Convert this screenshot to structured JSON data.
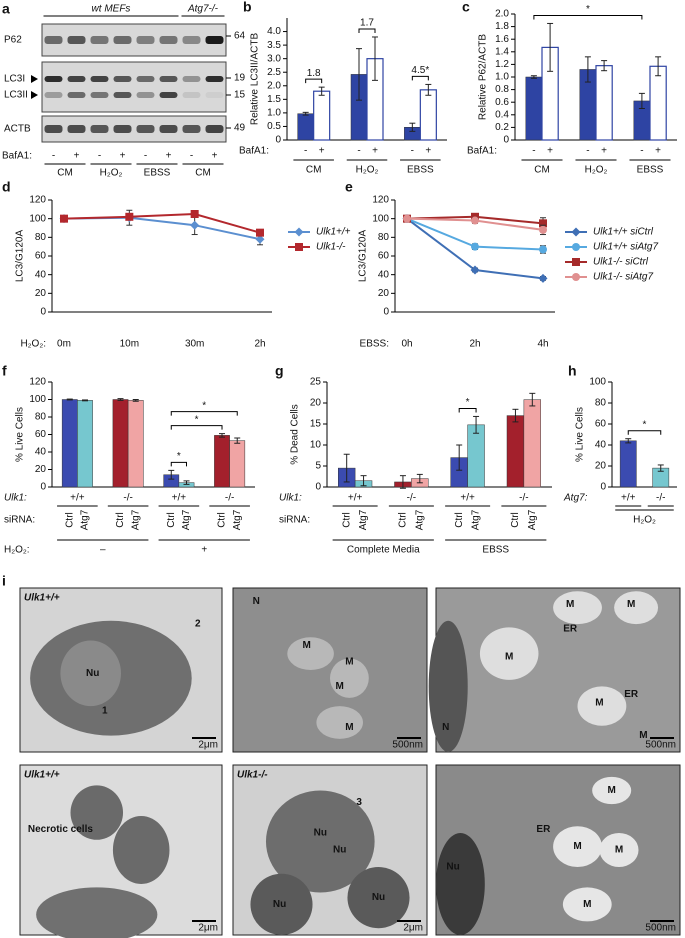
{
  "blot": {
    "panel": "a",
    "groups": [
      "wt MEFs",
      "Atg7-/-"
    ],
    "proteins": [
      "P62",
      "LC3I",
      "LC3II",
      "ACTB"
    ],
    "markers": [
      "64",
      "19",
      "15",
      "49"
    ],
    "treatment_title": "BafA1:",
    "lanes": [
      "-",
      "+",
      "-",
      "+",
      "-",
      "+",
      "-",
      "+"
    ],
    "conditions": [
      "CM",
      "H₂O₂",
      "EBSS",
      "CM"
    ]
  },
  "chart_data": [
    {
      "panel": "b",
      "type": "bar",
      "ylabel": "Relative LC3II/ACTB",
      "categories": [
        "CM",
        "H₂O₂",
        "EBSS"
      ],
      "series_title": "BafA1:",
      "series": [
        {
          "name": "-",
          "color": "#2e44a3",
          "values": [
            0.97,
            2.42,
            0.47
          ],
          "errors": [
            0.05,
            0.95,
            0.15
          ]
        },
        {
          "name": "+",
          "color": "#ffffff",
          "edgecolor": "#2e44a3",
          "values": [
            1.8,
            3.0,
            1.85
          ],
          "errors": [
            0.15,
            0.8,
            0.2
          ]
        }
      ],
      "ylim": [
        0,
        4.5
      ],
      "yticks": [
        0,
        0.5,
        {
          "value": 1,
          "label": "1.0"
        },
        1.5,
        {
          "value": 2,
          "label": "2.0"
        },
        2.5,
        {
          "value": 3,
          "label": "3.0"
        },
        3.5,
        {
          "value": 4,
          "label": "4.0"
        }
      ],
      "annotations": [
        {
          "text": "1.8",
          "from": [
            0,
            0
          ],
          "to": [
            0,
            1
          ]
        },
        {
          "text": "1.7",
          "from": [
            1,
            0
          ],
          "to": [
            1,
            1
          ]
        },
        {
          "text": "4.5*",
          "from": [
            2,
            0
          ],
          "to": [
            2,
            1
          ]
        }
      ]
    },
    {
      "panel": "c",
      "type": "bar",
      "ylabel": "Relative P62/ACTB",
      "categories": [
        "CM",
        "H₂O₂",
        "EBSS"
      ],
      "series_title": "BafA1:",
      "series": [
        {
          "name": "-",
          "color": "#2e44a3",
          "values": [
            1.0,
            1.12,
            0.62
          ],
          "errors": [
            0.02,
            0.2,
            0.12
          ]
        },
        {
          "name": "+",
          "color": "#ffffff",
          "edgecolor": "#2e44a3",
          "values": [
            1.47,
            1.18,
            1.17
          ],
          "errors": [
            0.38,
            0.08,
            0.15
          ]
        }
      ],
      "ylim": [
        0,
        2
      ],
      "yticks": [
        0,
        0.2,
        0.4,
        0.6,
        0.8,
        {
          "value": 1,
          "label": "1.0"
        },
        1.2,
        1.4,
        1.6,
        1.8,
        {
          "value": 2,
          "label": "2.0"
        }
      ],
      "annotations": [
        {
          "text": "*",
          "from": [
            0,
            0
          ],
          "to": [
            2,
            0
          ]
        }
      ]
    },
    {
      "panel": "d",
      "type": "line",
      "ylabel": "LC3/G120A",
      "xlabel": "H₂O₂:",
      "categories": [
        "0m",
        "10m",
        "30m",
        "2h"
      ],
      "series": [
        {
          "name": "Ulk1+/+",
          "color": "#5b8fd0",
          "marker": "diamond",
          "values": [
            100,
            101,
            93,
            78
          ],
          "errors": [
            0,
            8,
            10,
            6
          ]
        },
        {
          "name": "Ulk1-/-",
          "color": "#b3282d",
          "marker": "square",
          "values": [
            100,
            102,
            105,
            85
          ],
          "errors": [
            0,
            3,
            2,
            3
          ]
        }
      ],
      "ylim": [
        0,
        120
      ],
      "yticks": [
        0,
        20,
        40,
        60,
        80,
        100,
        120
      ]
    },
    {
      "panel": "e",
      "type": "line",
      "ylabel": "LC3/G120A",
      "xlabel": "EBSS:",
      "categories": [
        "0h",
        "2h",
        "4h"
      ],
      "series": [
        {
          "name": "Ulk1+/+ siCtrl",
          "color": "#3f6fb5",
          "marker": "diamond",
          "values": [
            100,
            45,
            36
          ],
          "errors": [
            0,
            2,
            2
          ]
        },
        {
          "name": "Ulk1+/+ siAtg7",
          "color": "#56a9e0",
          "marker": "circle",
          "values": [
            100,
            70,
            67
          ],
          "errors": [
            0,
            3,
            4
          ]
        },
        {
          "name": "Ulk1-/- siCtrl",
          "color": "#a52a2a",
          "marker": "square",
          "values": [
            100,
            102,
            95
          ],
          "errors": [
            0,
            3,
            6
          ]
        },
        {
          "name": "Ulk1-/- siAtg7",
          "color": "#e09090",
          "marker": "circle",
          "values": [
            100,
            98,
            88
          ],
          "errors": [
            0,
            3,
            5
          ]
        }
      ],
      "ylim": [
        0,
        120
      ],
      "yticks": [
        0,
        20,
        40,
        60,
        80,
        100,
        120
      ]
    },
    {
      "panel": "f",
      "type": "bar",
      "ylabel": "% Live Cells",
      "category_title": "Ulk1:",
      "categories": [
        "+/+",
        "-/-",
        "+/+",
        "-/-"
      ],
      "series_title": "siRNA:",
      "series": [
        {
          "name": "Ctrl",
          "colors": [
            "#3b4bb0",
            "#a3202c",
            "#3b4bb0",
            "#a3202c"
          ],
          "values": [
            100,
            100,
            14,
            59
          ],
          "errors": [
            0.5,
            1,
            5,
            2
          ]
        },
        {
          "name": "Atg7",
          "colors": [
            "#76c7cf",
            "#f0a4a4",
            "#76c7cf",
            "#f0a4a4"
          ],
          "values": [
            99,
            99,
            5,
            53
          ],
          "errors": [
            0.5,
            1,
            2,
            3
          ]
        }
      ],
      "treatment_title": "H₂O₂:",
      "treatment": [
        "–",
        "–",
        "+",
        "+"
      ],
      "ylim": [
        0,
        120
      ],
      "yticks": [
        0,
        20,
        40,
        60,
        80,
        100,
        120
      ],
      "annotations": [
        {
          "text": "*",
          "from": [
            2,
            0
          ],
          "to": [
            2,
            1
          ]
        },
        {
          "text": "*",
          "from": [
            2,
            0
          ],
          "to": [
            3,
            0
          ]
        },
        {
          "text": "*",
          "from": [
            2,
            0
          ],
          "to": [
            3,
            1
          ]
        }
      ]
    },
    {
      "panel": "g",
      "type": "bar",
      "ylabel": "% Dead Cells",
      "category_title": "Ulk1:",
      "categories": [
        "+/+",
        "-/-",
        "+/+",
        "-/-"
      ],
      "series_title": "siRNA:",
      "series": [
        {
          "name": "Ctrl",
          "colors": [
            "#3b4bb0",
            "#a3202c",
            "#3b4bb0",
            "#a3202c"
          ],
          "values": [
            4.5,
            1.2,
            7,
            17
          ],
          "errors": [
            3.3,
            1.5,
            3,
            1.5
          ]
        },
        {
          "name": "Atg7",
          "colors": [
            "#76c7cf",
            "#f0a4a4",
            "#76c7cf",
            "#f0a4a4"
          ],
          "values": [
            1.5,
            2.0,
            14.8,
            20.8
          ],
          "errors": [
            1.2,
            1,
            2,
            1.5
          ]
        }
      ],
      "treatment": [
        "Complete Media",
        "Complete Media",
        "EBSS",
        "EBSS"
      ],
      "ylim": [
        0,
        25
      ],
      "yticks": [
        0,
        5,
        10,
        15,
        20,
        25
      ],
      "annotations": [
        {
          "text": "*",
          "from": [
            2,
            0
          ],
          "to": [
            2,
            1
          ]
        }
      ]
    },
    {
      "panel": "h",
      "type": "bar",
      "ylabel": "% Live Cells",
      "category_title": "Atg7:",
      "categories": [
        "+/+",
        "-/-"
      ],
      "series": [
        {
          "colors": [
            "#3b4bb0",
            "#76c7cf"
          ],
          "values": [
            44,
            18
          ],
          "errors": [
            2,
            3
          ]
        }
      ],
      "treatment": [
        "H₂O₂",
        "H₂O₂"
      ],
      "ylim": [
        0,
        100
      ],
      "yticks": [
        0,
        20,
        40,
        60,
        80,
        100
      ],
      "annotations": [
        {
          "text": "*",
          "from": [
            0,
            0
          ],
          "to": [
            1,
            0
          ]
        }
      ]
    }
  ],
  "micrographs": {
    "panel": "i",
    "images": [
      {
        "genotype": "Ulk1+/+",
        "labels": [
          "Nu",
          "1",
          "2"
        ],
        "scale": "2μm"
      },
      {
        "labels": [
          "N",
          "M",
          "M",
          "M",
          "M"
        ],
        "scale": "500nm"
      },
      {
        "labels": [
          "M",
          "M",
          "M",
          "ER",
          "M",
          "ER",
          "M",
          "N"
        ],
        "scale": "500nm"
      },
      {
        "genotype": "Ulk1+/+",
        "labels": [
          "Necrotic cells"
        ],
        "scale": "2μm"
      },
      {
        "genotype": "Ulk1-/-",
        "labels": [
          "Nu",
          "Nu",
          "Nu",
          "Nu",
          "3"
        ],
        "scale": "2μm"
      },
      {
        "labels": [
          "Nu",
          "ER",
          "M",
          "M",
          "M",
          "M"
        ],
        "scale": "500nm"
      }
    ]
  }
}
